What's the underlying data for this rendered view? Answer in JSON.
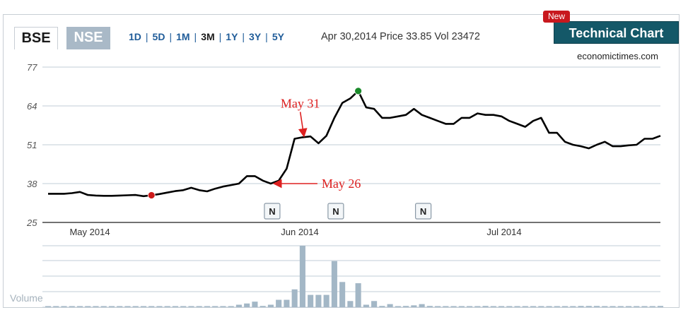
{
  "tabs": [
    {
      "label": "BSE",
      "active": true
    },
    {
      "label": "NSE",
      "active": false
    }
  ],
  "ranges": [
    "1D",
    "5D",
    "1M",
    "3M",
    "1Y",
    "3Y",
    "5Y"
  ],
  "active_range": "3M",
  "quote_text": "Apr 30,2014 Price 33.85 Vol 23472",
  "technical_chart": {
    "label": "Technical Chart",
    "badge": "New"
  },
  "source": "economictimes.com",
  "colors": {
    "line": "#000000",
    "grid": "#c2cdd7",
    "volume_bar": "#a3b7c6",
    "annotation": "#dd2020",
    "low_marker": "#cc1a1a",
    "high_marker": "#1a8a2a",
    "button_bg": "#145868"
  },
  "chart_data": {
    "type": "line",
    "title": "",
    "ylim": [
      25,
      77
    ],
    "y_ticks": [
      "77",
      "64",
      "51",
      "38",
      "25"
    ],
    "x_tick_labels": [
      "May 2014",
      "Jun 2014",
      "Jul 2014"
    ],
    "grid": true,
    "series": [
      {
        "values": [
          34.6,
          34.6,
          34.6,
          34.8,
          35.2,
          34.2,
          34.0,
          33.9,
          33.9,
          34.0,
          34.1,
          34.2,
          33.8,
          34.1,
          34.5,
          35.0,
          35.5,
          35.8,
          36.6,
          35.8,
          35.4,
          36.3,
          37.0,
          37.5,
          38.0,
          40.5,
          40.5,
          39.0,
          38.0,
          39.0,
          43.0,
          53.0,
          53.5,
          53.8,
          51.5,
          54.0,
          60.0,
          65.0,
          66.5,
          69.0,
          63.5,
          63.0,
          60.0,
          60.0,
          60.5,
          61.0,
          63.0,
          61.0,
          60.0,
          59.0,
          58.0,
          58.0,
          60.0,
          60.0,
          61.5,
          61.0,
          61.0,
          60.5,
          59.0,
          58.0,
          57.0,
          59.0,
          60.0,
          55.0,
          55.0,
          52.0,
          51.0,
          50.5,
          49.8,
          51.0,
          52.0,
          50.5,
          50.5,
          50.8,
          51.0,
          53.0,
          53.0,
          54.0
        ]
      }
    ],
    "markers": [
      {
        "name": "low",
        "index": 13,
        "value": 34.1
      },
      {
        "name": "high",
        "index": 39,
        "value": 69.0
      }
    ],
    "annotations": [
      {
        "text": "May 31",
        "index": 31,
        "value": 53.0
      },
      {
        "text": "May 26",
        "index": 28,
        "value": 38.0
      }
    ],
    "news_markers": [
      {
        "label": "N",
        "index": 28
      },
      {
        "label": "N",
        "index": 36
      },
      {
        "label": "N",
        "index": 47
      }
    ],
    "volume": {
      "label": "Volume",
      "values": [
        0.01,
        0.01,
        0.01,
        0.01,
        0.01,
        0.01,
        0.01,
        0.01,
        0.01,
        0.01,
        0.01,
        0.01,
        0.01,
        0.01,
        0.01,
        0.01,
        0.01,
        0.01,
        0.01,
        0.01,
        0.01,
        0.01,
        0.01,
        0.01,
        0.04,
        0.06,
        0.09,
        0.02,
        0.04,
        0.12,
        0.12,
        0.29,
        1.0,
        0.2,
        0.2,
        0.2,
        0.75,
        0.41,
        0.1,
        0.39,
        0.04,
        0.1,
        0.02,
        0.05,
        0.01,
        0.02,
        0.03,
        0.05,
        0.02,
        0.01,
        0.01,
        0.01,
        0.01,
        0.01,
        0.01,
        0.02,
        0.01,
        0.01,
        0.01,
        0.01,
        0.01,
        0.01,
        0.01,
        0.01,
        0.01,
        0.01,
        0.01,
        0.02,
        0.02,
        0.02,
        0.01,
        0.01,
        0.01,
        0.01,
        0.01,
        0.01,
        0.01,
        0.02
      ]
    }
  }
}
